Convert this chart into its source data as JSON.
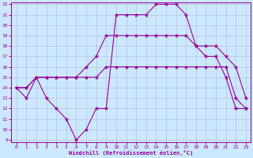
{
  "line1": [
    14,
    13,
    15,
    13,
    12,
    11,
    9,
    10,
    12,
    12,
    21,
    21,
    21,
    21,
    22,
    22,
    22,
    21,
    18,
    17,
    17,
    15,
    12,
    12
  ],
  "line2": [
    14,
    14,
    15,
    15,
    15,
    15,
    15,
    16,
    17,
    19,
    19,
    19,
    19,
    19,
    19,
    19,
    19,
    19,
    18,
    18,
    18,
    17,
    16,
    13
  ],
  "line3": [
    14,
    14,
    15,
    15,
    15,
    15,
    15,
    15,
    15,
    16,
    16,
    16,
    16,
    16,
    16,
    16,
    16,
    16,
    16,
    16,
    16,
    16,
    13,
    12
  ],
  "x": [
    0,
    1,
    2,
    3,
    4,
    5,
    6,
    7,
    8,
    9,
    10,
    11,
    12,
    13,
    14,
    15,
    16,
    17,
    18,
    19,
    20,
    21,
    22,
    23
  ],
  "xlabel": "Windchill (Refroidissement éolien,°C)",
  "ylim": [
    9,
    22
  ],
  "xlim": [
    -0.5,
    23.5
  ],
  "yticks": [
    9,
    10,
    11,
    12,
    13,
    14,
    15,
    16,
    17,
    18,
    19,
    20,
    21,
    22
  ],
  "xticks": [
    0,
    1,
    2,
    3,
    4,
    5,
    6,
    7,
    8,
    9,
    10,
    11,
    12,
    13,
    14,
    15,
    16,
    17,
    18,
    19,
    20,
    21,
    22,
    23
  ],
  "line_color": "#990099",
  "bg_color": "#cce8ff",
  "grid_color": "#b0b8d0"
}
